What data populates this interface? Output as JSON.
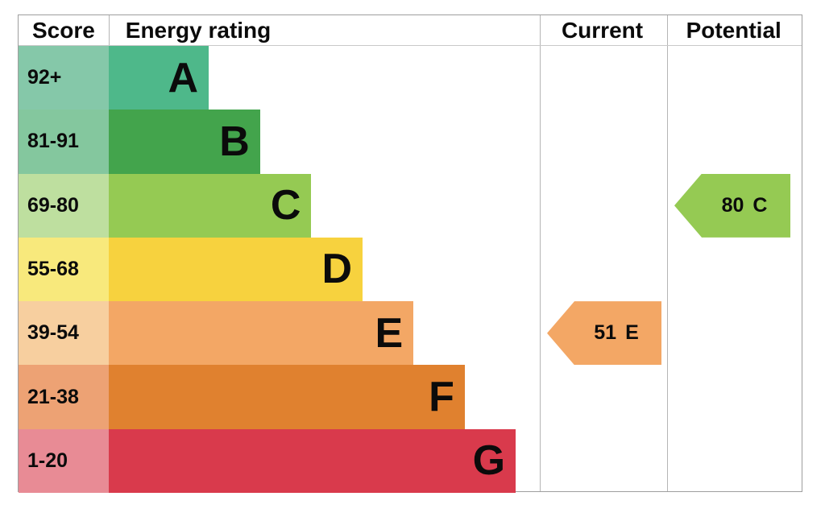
{
  "header": {
    "score": "Score",
    "energy_rating": "Energy rating",
    "current": "Current",
    "potential": "Potential"
  },
  "bands": [
    {
      "score": "92+",
      "letter": "A",
      "bar_color": "#4eb88a",
      "score_color": "#85c8a9",
      "width_pct": 23.2
    },
    {
      "score": "81-91",
      "letter": "B",
      "bar_color": "#43a44c",
      "score_color": "#84c79e",
      "width_pct": 35.1
    },
    {
      "score": "69-80",
      "letter": "C",
      "bar_color": "#95ca53",
      "score_color": "#bedf9f",
      "width_pct": 47.0
    },
    {
      "score": "55-68",
      "letter": "D",
      "bar_color": "#f7d23e",
      "score_color": "#f8e97c",
      "width_pct": 58.9
    },
    {
      "score": "39-54",
      "letter": "E",
      "bar_color": "#f3a765",
      "score_color": "#f7cf9f",
      "width_pct": 70.7
    },
    {
      "score": "21-38",
      "letter": "F",
      "bar_color": "#e0812f",
      "score_color": "#eda274",
      "width_pct": 82.6
    },
    {
      "score": "1-20",
      "letter": "G",
      "bar_color": "#d93a4c",
      "score_color": "#e88b95",
      "width_pct": 94.4
    }
  ],
  "current": {
    "value": "51",
    "letter": "E",
    "color": "#f3a765",
    "band_index": 4
  },
  "potential": {
    "value": "80",
    "letter": "C",
    "color": "#95ca53",
    "band_index": 2
  },
  "chart_data": {
    "type": "bar",
    "title": "Energy rating",
    "categories": [
      "A",
      "B",
      "C",
      "D",
      "E",
      "F",
      "G"
    ],
    "score_ranges": [
      "92+",
      "81-91",
      "69-80",
      "55-68",
      "39-54",
      "21-38",
      "1-20"
    ],
    "bar_length_pct": [
      23.2,
      35.1,
      47.0,
      58.9,
      70.7,
      82.6,
      94.4
    ],
    "columns": [
      "Score",
      "Energy rating",
      "Current",
      "Potential"
    ],
    "current": {
      "value": 51,
      "band": "E"
    },
    "potential": {
      "value": 80,
      "band": "C"
    },
    "legend_position": "none",
    "grid": false
  }
}
